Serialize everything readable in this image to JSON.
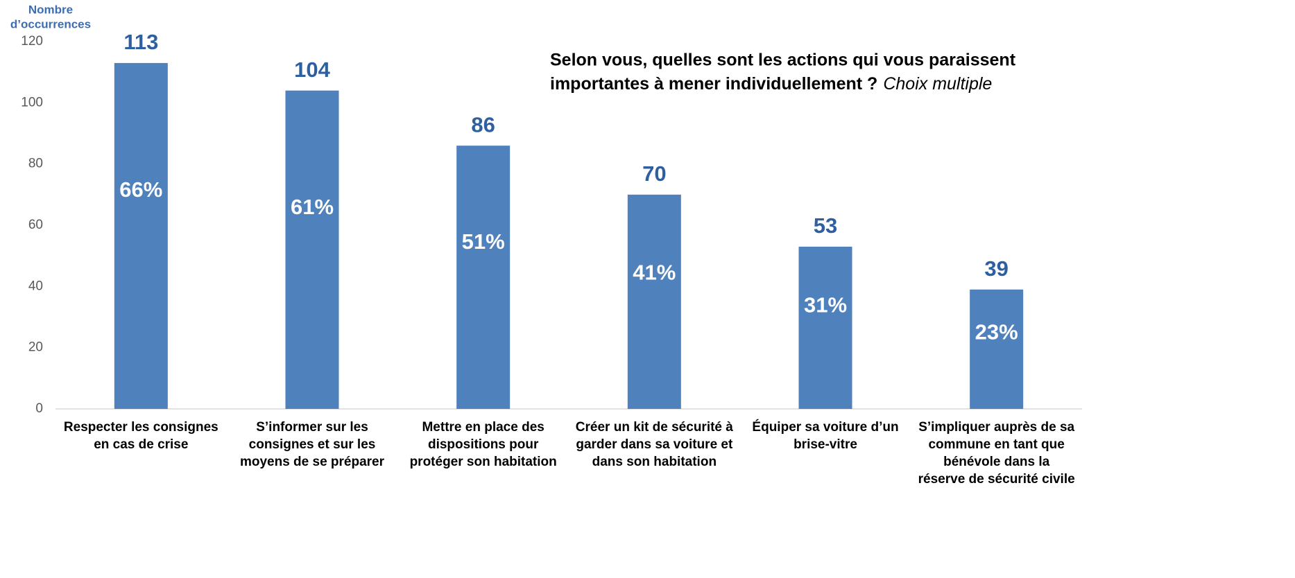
{
  "chart_data": {
    "type": "bar",
    "title": [
      "Selon vous, quelles sont les actions qui vous paraissent",
      "importantes à mener individuellement ?"
    ],
    "subtitle": "Choix multiple",
    "y_label": [
      "Nombre",
      "d’occurrences"
    ],
    "categories": [
      [
        "Respecter les consignes",
        "en cas de crise"
      ],
      [
        "S’informer sur les",
        "consignes et sur les",
        "moyens de se préparer"
      ],
      [
        "Mettre en place des",
        "dispositions pour",
        "protéger son habitation"
      ],
      [
        "Créer un kit de sécurité à",
        "garder dans sa voiture et",
        "dans son habitation"
      ],
      [
        "Équiper sa voiture d’un",
        "brise-vitre"
      ],
      [
        "S’impliquer auprès de sa",
        "commune en tant que",
        "bénévole dans la",
        "réserve de sécurité civile"
      ]
    ],
    "values": [
      113,
      104,
      86,
      70,
      53,
      39
    ],
    "share_labels": [
      "66%",
      "61%",
      "51%",
      "41%",
      "31%",
      "23%"
    ],
    "color": "#4f81bd",
    "ylim": [
      0,
      120
    ],
    "yticks": [
      0,
      20,
      40,
      60,
      80,
      100,
      120
    ],
    "grid": false
  }
}
